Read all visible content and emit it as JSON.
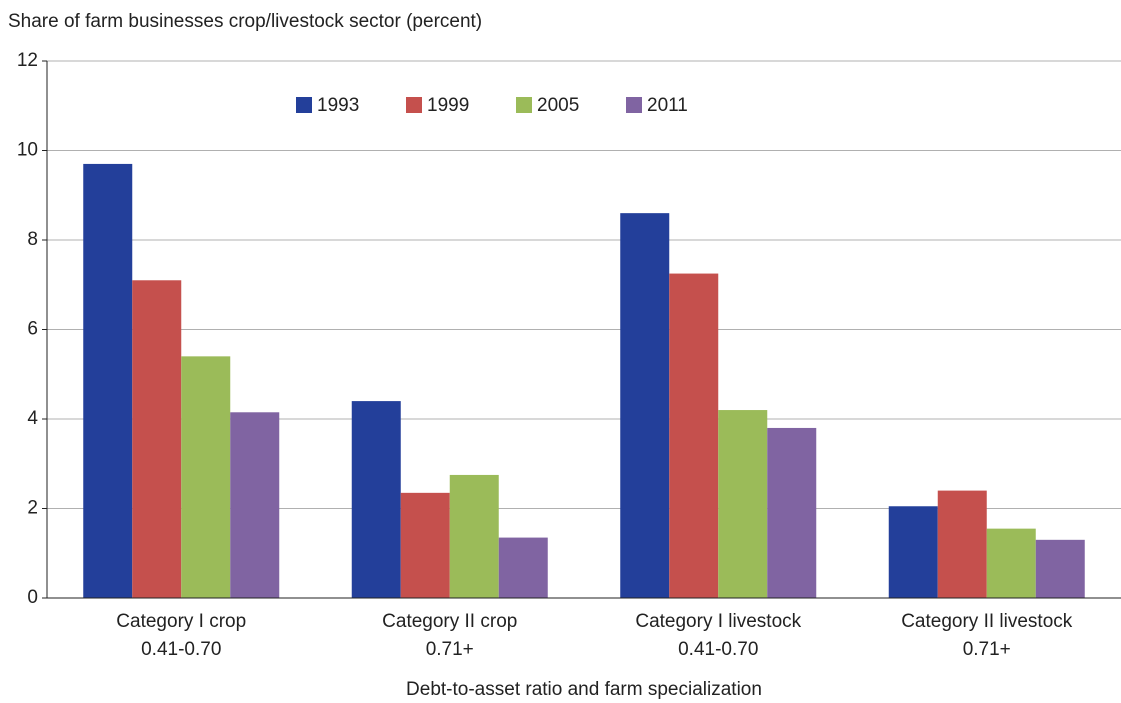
{
  "chart_data": {
    "type": "bar",
    "y_label": "Share of farm businesses crop/livestock sector (percent)",
    "x_label": "Debt-to-asset ratio and farm specialization",
    "categories": [
      [
        "Category I crop",
        "0.41-0.70"
      ],
      [
        "Category II crop",
        "0.71+"
      ],
      [
        "Category I livestock",
        "0.41-0.70"
      ],
      [
        "Category II livestock",
        "0.71+"
      ]
    ],
    "series": [
      {
        "name": "1993",
        "color": "#233f9a",
        "values": [
          9.7,
          4.4,
          8.6,
          2.05
        ]
      },
      {
        "name": "1999",
        "color": "#c5504d",
        "values": [
          7.1,
          2.35,
          7.25,
          2.4
        ]
      },
      {
        "name": "2005",
        "color": "#9bbb59",
        "values": [
          5.4,
          2.75,
          4.2,
          1.55
        ]
      },
      {
        "name": "2011",
        "color": "#8064a2",
        "values": [
          4.15,
          1.35,
          3.8,
          1.3
        ]
      }
    ],
    "ylim": [
      0,
      12
    ],
    "yticks": [
      0,
      2,
      4,
      6,
      8,
      10,
      12
    ],
    "grid": true,
    "legend": "top"
  }
}
